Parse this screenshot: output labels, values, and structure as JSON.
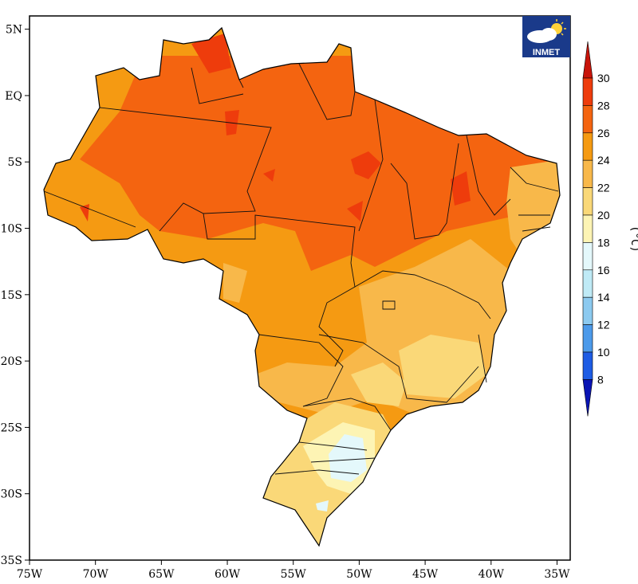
{
  "map": {
    "lat_ticks": [
      "5N",
      "EQ",
      "5S",
      "10S",
      "15S",
      "20S",
      "25S",
      "30S",
      "35S"
    ],
    "lon_ticks": [
      "75W",
      "70W",
      "65W",
      "60W",
      "55W",
      "50W",
      "45W",
      "40W",
      "35W"
    ],
    "lat_range": [
      -35,
      6
    ],
    "lon_range": [
      -75,
      -34
    ],
    "logo_text": "INMET"
  },
  "colorbar": {
    "unit": "(°C)",
    "ticks": [
      {
        "value": 30,
        "label": "30"
      },
      {
        "value": 28,
        "label": "28"
      },
      {
        "value": 26,
        "label": "26"
      },
      {
        "value": 24,
        "label": "24"
      },
      {
        "value": 22,
        "label": "22"
      },
      {
        "value": 20,
        "label": "20"
      },
      {
        "value": 18,
        "label": "18"
      },
      {
        "value": 16,
        "label": "16"
      },
      {
        "value": 14,
        "label": "14"
      },
      {
        "value": 12,
        "label": "12"
      },
      {
        "value": 10,
        "label": "10"
      },
      {
        "value": 8,
        "label": "8"
      }
    ],
    "bins": [
      {
        "range": "above 30",
        "color": "#c8140a"
      },
      {
        "range": "28-30",
        "color": "#ee3c0c"
      },
      {
        "range": "26-28",
        "color": "#f46410"
      },
      {
        "range": "24-26",
        "color": "#f59a12"
      },
      {
        "range": "22-24",
        "color": "#f8b84a"
      },
      {
        "range": "20-22",
        "color": "#fad878"
      },
      {
        "range": "18-20",
        "color": "#fdf4b4"
      },
      {
        "range": "16-18",
        "color": "#e4f8fb"
      },
      {
        "range": "14-16",
        "color": "#bfeaf6"
      },
      {
        "range": "12-14",
        "color": "#8ccaf0"
      },
      {
        "range": "10-12",
        "color": "#4c9aea"
      },
      {
        "range": "8-10",
        "color": "#1e5ce4"
      },
      {
        "range": "below 8",
        "color": "#0a14b4"
      }
    ]
  }
}
